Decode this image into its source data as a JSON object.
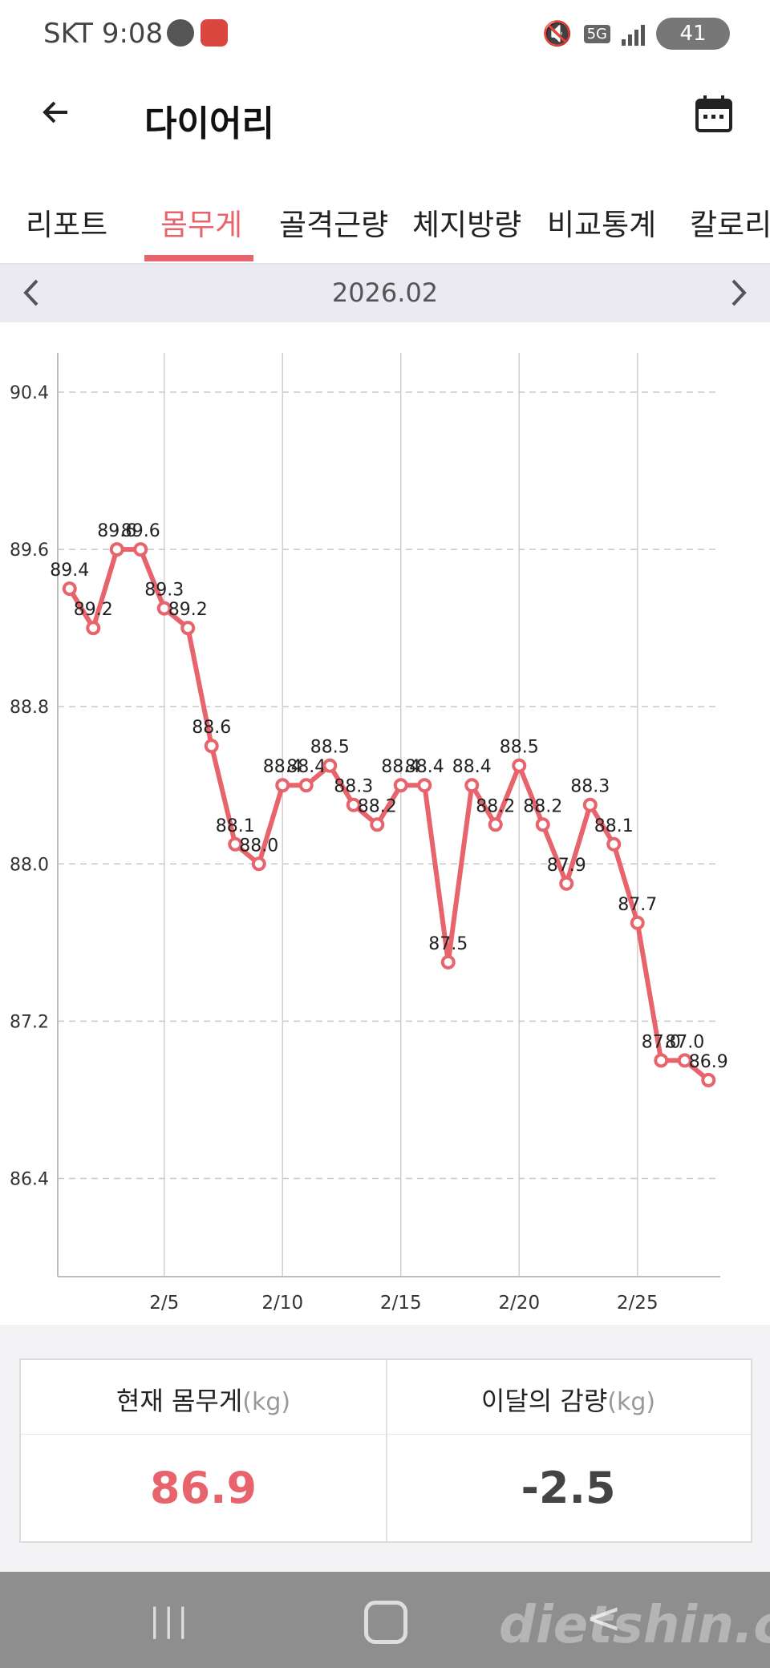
{
  "status_bar": {
    "carrier_time": "SKT 9:08",
    "network": "5G",
    "battery": "41"
  },
  "header": {
    "title": "다이어리",
    "back_icon": "arrow-left-icon",
    "calendar_icon": "calendar-icon"
  },
  "tabs": [
    {
      "label": "리포트",
      "active": false
    },
    {
      "label": "몸무게",
      "active": true
    },
    {
      "label": "골격근량",
      "active": false
    },
    {
      "label": "체지방량",
      "active": false
    },
    {
      "label": "비교통계",
      "active": false
    },
    {
      "label": "칼로리",
      "active": false
    }
  ],
  "month_nav": {
    "label": "2026.02"
  },
  "chart_data": {
    "type": "line",
    "x_ticks": [
      "2/5",
      "2/10",
      "2/15",
      "2/20",
      "2/25"
    ],
    "y_ticks": [
      "90.4",
      "89.6",
      "88.8",
      "88.0",
      "87.2",
      "86.4"
    ],
    "ylim": [
      85.9,
      90.6
    ],
    "xlim": [
      0.5,
      28.5
    ],
    "grid": true,
    "line_color": "#e8646c",
    "series": [
      {
        "points": [
          {
            "day": 1,
            "value": 89.4,
            "label": "89.4"
          },
          {
            "day": 2,
            "value": 89.2,
            "label": "89.2"
          },
          {
            "day": 3,
            "value": 89.6,
            "label": "89.6"
          },
          {
            "day": 4,
            "value": 89.6,
            "label": "89.6"
          },
          {
            "day": 5,
            "value": 89.3,
            "label": "89.3"
          },
          {
            "day": 6,
            "value": 89.2,
            "label": "89.2"
          },
          {
            "day": 7,
            "value": 88.6,
            "label": "88.6"
          },
          {
            "day": 8,
            "value": 88.1,
            "label": "88.1"
          },
          {
            "day": 9,
            "value": 88.0,
            "label": "88.0"
          },
          {
            "day": 10,
            "value": 88.4,
            "label": "88.4"
          },
          {
            "day": 11,
            "value": 88.4,
            "label": "88.4"
          },
          {
            "day": 12,
            "value": 88.5,
            "label": "88.5"
          },
          {
            "day": 13,
            "value": 88.3,
            "label": "88.3"
          },
          {
            "day": 14,
            "value": 88.2,
            "label": "88.2"
          },
          {
            "day": 15,
            "value": 88.4,
            "label": "88.4"
          },
          {
            "day": 16,
            "value": 88.4,
            "label": "88.4"
          },
          {
            "day": 17,
            "value": 87.5,
            "label": "87.5"
          },
          {
            "day": 18,
            "value": 88.4,
            "label": "88.4"
          },
          {
            "day": 19,
            "value": 88.2,
            "label": "88.2"
          },
          {
            "day": 20,
            "value": 88.5,
            "label": "88.5"
          },
          {
            "day": 21,
            "value": 88.2,
            "label": "88.2"
          },
          {
            "day": 22,
            "value": 87.9,
            "label": "87.9"
          },
          {
            "day": 23,
            "value": 88.3,
            "label": "88.3"
          },
          {
            "day": 24,
            "value": 88.1,
            "label": "88.1"
          },
          {
            "day": 25,
            "value": 87.7,
            "label": "87.7"
          },
          {
            "day": 26,
            "value": 87.0,
            "label": "87.0"
          },
          {
            "day": 27,
            "value": 87.0,
            "label": "87.0"
          },
          {
            "day": 28,
            "value": 86.9,
            "label": "86.9"
          }
        ]
      }
    ]
  },
  "summary": {
    "current_weight_label": "현재 몸무게",
    "current_weight_unit": "(kg)",
    "current_weight_value": "86.9",
    "monthly_change_label": "이달의 감량",
    "monthly_change_unit": "(kg)",
    "monthly_change_value": "-2.5"
  },
  "nav_bar": {
    "recent_icon": "recent-apps-icon",
    "home_icon": "home-icon",
    "back_icon": "back-icon",
    "watermark": "dietshin.com"
  }
}
